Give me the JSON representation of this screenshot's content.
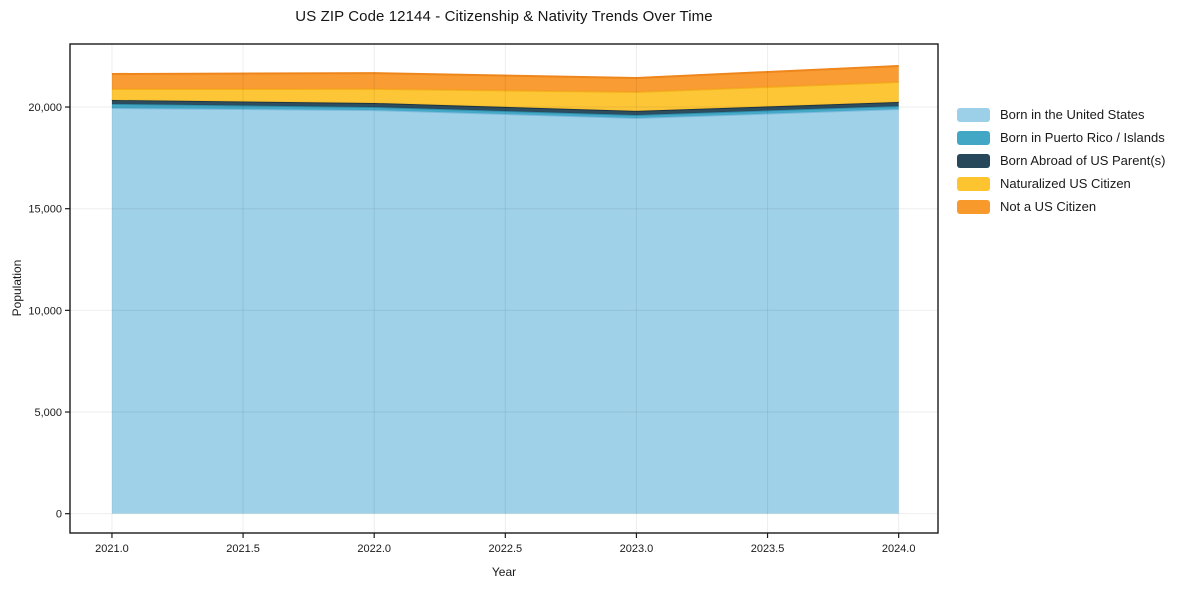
{
  "colors": {
    "background": "#ffffff",
    "spine": "#1a1a1a",
    "tick_text": "#1a1a1a",
    "grid_overlay": "rgba(0,0,0,0.07)"
  },
  "chart_data": {
    "type": "area",
    "stacked": true,
    "title": "US ZIP Code 12144 - Citizenship & Nativity Trends Over Time",
    "xlabel": "Year",
    "ylabel": "Population",
    "x": [
      2021,
      2022,
      2023,
      2024
    ],
    "series": [
      {
        "id": "born-us",
        "name": "Born in the United States",
        "color": "#9CD0E8",
        "line_color": "#7CBBDD",
        "values": [
          19950,
          19850,
          19460,
          19900
        ]
      },
      {
        "id": "puerto-rico",
        "name": "Born in Puerto Rico / Islands",
        "color": "#41A7C5",
        "line_color": "#2E8FAD",
        "values": [
          200,
          150,
          150,
          150
        ]
      },
      {
        "id": "born-abroad",
        "name": "Born Abroad of US Parent(s)",
        "color": "#27485B",
        "line_color": "#1B3545",
        "values": [
          195,
          200,
          200,
          200
        ]
      },
      {
        "id": "naturalized",
        "name": "Naturalized US Citizen",
        "color": "#FDC42F",
        "line_color": "#F3B11A",
        "values": [
          540,
          690,
          930,
          980
        ]
      },
      {
        "id": "not-citizen",
        "name": "Not a US Citizen",
        "color": "#F8992C",
        "line_color": "#EE861C",
        "values": [
          740,
          780,
          690,
          790
        ]
      }
    ],
    "xlim": [
      2020.84,
      2024.15
    ],
    "ylim": [
      -950,
      23100
    ],
    "xticks": {
      "values": [
        2021.0,
        2021.5,
        2022.0,
        2022.5,
        2023.0,
        2023.5,
        2024.0
      ],
      "labels": [
        "2021.0",
        "2021.5",
        "2022.0",
        "2022.5",
        "2023.0",
        "2023.5",
        "2024.0"
      ]
    },
    "yticks": {
      "values": [
        0,
        5000,
        10000,
        15000,
        20000
      ],
      "labels": [
        "0",
        "5,000",
        "10,000",
        "15,000",
        "20,000"
      ]
    },
    "grid": true,
    "legend_position": "right-outside"
  }
}
